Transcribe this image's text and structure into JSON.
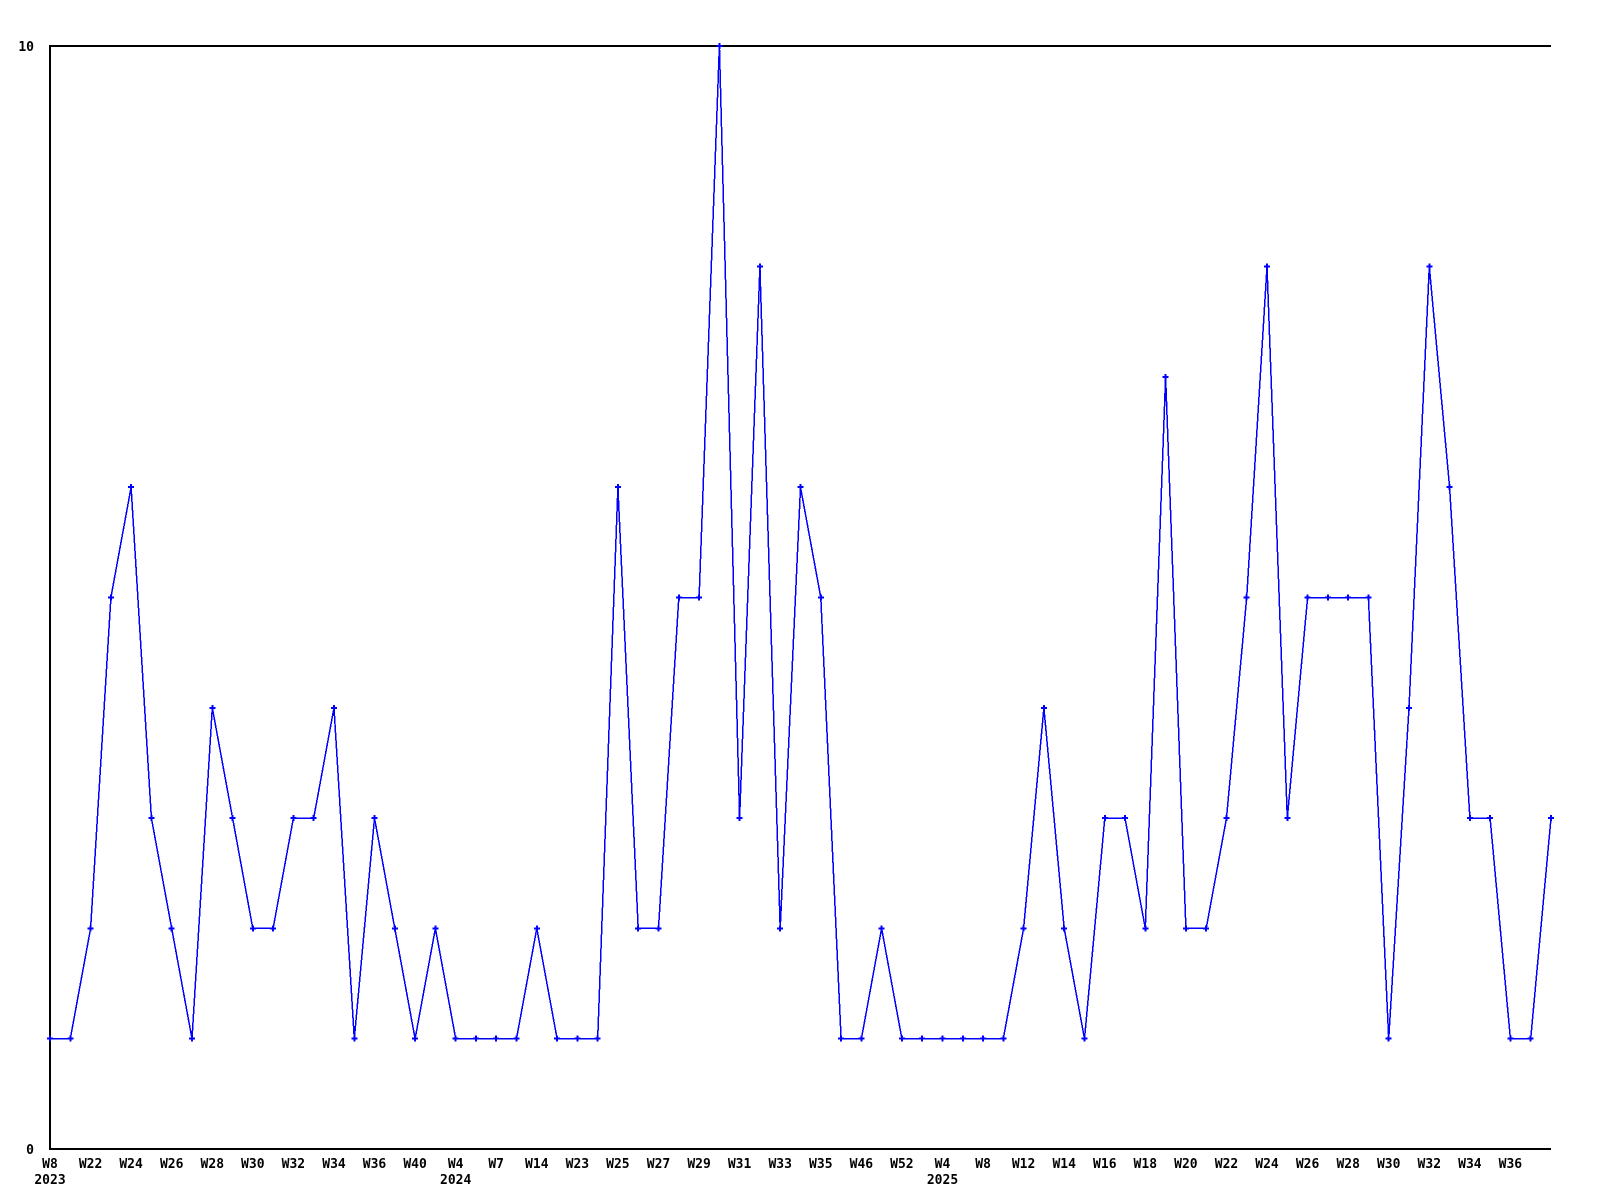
{
  "chart_data": {
    "type": "line",
    "title": "",
    "grid": false,
    "legend": "none",
    "background_color": "#ffffff",
    "axis_color": "#000000",
    "y_axis": {
      "min": 0,
      "max": 10,
      "tick_labels": [
        "0",
        "10"
      ]
    },
    "x_axis": {
      "points_per_tick": 2,
      "tick_labels": [
        "W8",
        "W22",
        "W24",
        "W26",
        "W28",
        "W30",
        "W32",
        "W34",
        "W36",
        "W40",
        "W4",
        "W7",
        "W14",
        "W23",
        "W25",
        "W27",
        "W29",
        "W31",
        "W33",
        "W35",
        "W46",
        "W52",
        "W4",
        "W8",
        "W12",
        "W14",
        "W16",
        "W18",
        "W20",
        "W22",
        "W24",
        "W26",
        "W28",
        "W30",
        "W32",
        "W34",
        "W36"
      ],
      "year_labels": [
        {
          "year": "2023",
          "tick_index": 0
        },
        {
          "year": "2024",
          "tick_index": 10
        },
        {
          "year": "2025",
          "tick_index": 22
        }
      ]
    },
    "series": [
      {
        "name": "",
        "color": "#0000ff",
        "marker": "plus",
        "values": [
          1,
          1,
          2,
          5,
          6,
          3,
          2,
          1,
          4,
          3,
          2,
          2,
          3,
          3,
          4,
          1,
          3,
          2,
          1,
          2,
          1,
          1,
          1,
          1,
          2,
          1,
          1,
          1,
          6,
          2,
          2,
          5,
          5,
          10,
          3,
          8,
          2,
          6,
          5,
          1,
          1,
          2,
          1,
          1,
          1,
          1,
          1,
          1,
          2,
          4,
          2,
          1,
          3,
          3,
          2,
          7,
          2,
          2,
          3,
          5,
          8,
          3,
          5,
          5,
          5,
          5,
          1,
          4,
          8,
          6,
          3,
          3,
          1,
          1,
          3
        ]
      }
    ]
  }
}
